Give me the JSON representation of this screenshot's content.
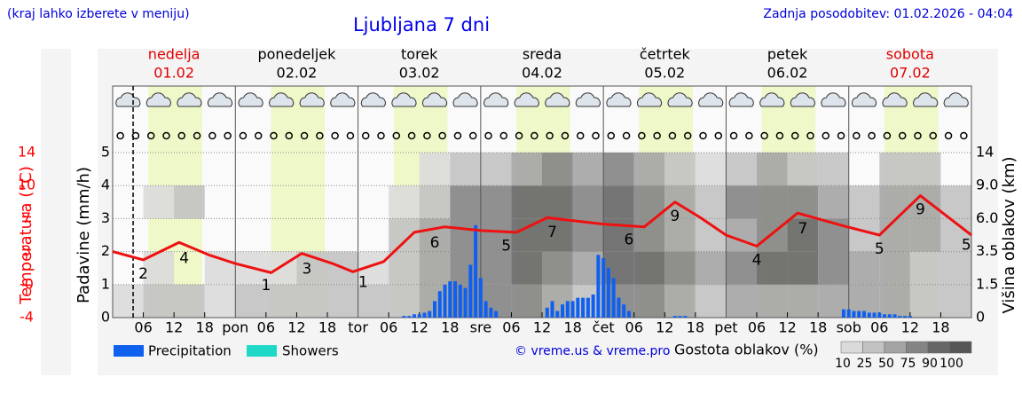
{
  "header": {
    "note": "(kraj lahko izberete v meniju)",
    "title": "Ljubljana 7 dni",
    "updated": "Zadnja posodobitev: 01.02.2026 - 04:04"
  },
  "chart_data": {
    "type": "meteogram",
    "days": [
      {
        "name": "nedelja",
        "date": "01.02",
        "color": "#e00000"
      },
      {
        "name": "ponedeljek",
        "date": "02.02",
        "color": "#000000"
      },
      {
        "name": "torek",
        "date": "03.02",
        "color": "#000000"
      },
      {
        "name": "sreda",
        "date": "04.02",
        "color": "#000000"
      },
      {
        "name": "četrtek",
        "date": "05.02",
        "color": "#000000"
      },
      {
        "name": "petek",
        "date": "06.02",
        "color": "#000000"
      },
      {
        "name": "sobota",
        "date": "07.02",
        "color": "#e00000"
      }
    ],
    "xlim": [
      0,
      168
    ],
    "xticks": [
      {
        "value": 6,
        "label": "06"
      },
      {
        "value": 12,
        "label": "12"
      },
      {
        "value": 18,
        "label": "18"
      },
      {
        "value": 24,
        "label": "pon"
      },
      {
        "value": 30,
        "label": "06"
      },
      {
        "value": 36,
        "label": "12"
      },
      {
        "value": 42,
        "label": "18"
      },
      {
        "value": 48,
        "label": "tor"
      },
      {
        "value": 54,
        "label": "06"
      },
      {
        "value": 60,
        "label": "12"
      },
      {
        "value": 66,
        "label": "18"
      },
      {
        "value": 72,
        "label": "sre"
      },
      {
        "value": 78,
        "label": "06"
      },
      {
        "value": 84,
        "label": "12"
      },
      {
        "value": 90,
        "label": "18"
      },
      {
        "value": 96,
        "label": "čet"
      },
      {
        "value": 102,
        "label": "06"
      },
      {
        "value": 108,
        "label": "12"
      },
      {
        "value": 114,
        "label": "18"
      },
      {
        "value": 120,
        "label": "pet"
      },
      {
        "value": 126,
        "label": "06"
      },
      {
        "value": 132,
        "label": "12"
      },
      {
        "value": 138,
        "label": "18"
      },
      {
        "value": 144,
        "label": "sob"
      },
      {
        "value": 150,
        "label": "06"
      },
      {
        "value": 156,
        "label": "12"
      },
      {
        "value": 162,
        "label": "18"
      }
    ],
    "daylight": [
      7,
      17.5
    ],
    "now": 4,
    "ylabel": "Padavine (mm/h)",
    "ylim": [
      0,
      5
    ],
    "yticks": [
      0,
      1,
      2,
      3,
      4,
      5
    ],
    "temp_label": "Temperatura (°C)",
    "temp_color": "#ff0000",
    "temp_ylim": [
      -4,
      14
    ],
    "temp_ticks": [
      {
        "value": -4,
        "label": "-4"
      },
      {
        "value": -0.4,
        "label": "-0"
      },
      {
        "value": 3.2,
        "label": "3"
      },
      {
        "value": 6.8,
        "label": "7"
      },
      {
        "value": 10.4,
        "label": "10"
      },
      14
    ],
    "y2label": "Višina oblakov (km)",
    "y2ticks": [
      0,
      1.5,
      3.5,
      {
        "value": 6,
        "label": "6.0"
      },
      {
        "value": 9,
        "label": "9.0"
      },
      14
    ],
    "temperature": {
      "color": "#ee1111",
      "x": [
        0,
        6,
        13,
        19,
        24,
        31,
        37,
        43,
        47,
        53,
        59,
        65,
        72,
        79,
        85,
        96,
        104,
        110,
        115,
        120,
        126,
        134,
        143,
        150,
        158,
        168
      ],
      "values": [
        3.2,
        2.3,
        4.2,
        2.8,
        1.9,
        0.9,
        3.0,
        1.9,
        1.0,
        2.1,
        5.3,
        5.9,
        5.5,
        5.3,
        6.9,
        6.2,
        5.9,
        8.6,
        6.9,
        5.0,
        3.8,
        7.4,
        6.0,
        5.0,
        9.3,
        5.0
      ]
    },
    "temp_labels": {
      "x": [
        6,
        14,
        30,
        38,
        49,
        63,
        77,
        86,
        101,
        110,
        126,
        135,
        150,
        158,
        167
      ],
      "values": [
        2,
        4,
        1,
        3,
        1,
        6,
        5,
        7,
        6,
        9,
        4,
        7,
        5,
        9,
        5
      ]
    },
    "series": [
      {
        "name": "Precipitation",
        "color": "#1060f0",
        "x": [
          57,
          58,
          59,
          60,
          61,
          62,
          63,
          64,
          65,
          66,
          67,
          68,
          69,
          70,
          71,
          72,
          73,
          74,
          75,
          85,
          86,
          87,
          88,
          89,
          90,
          91,
          92,
          93,
          94,
          95,
          96,
          97,
          98,
          99,
          100,
          101,
          110,
          111,
          112,
          143,
          144,
          145,
          146,
          147,
          148,
          149,
          150,
          151,
          152,
          153,
          154,
          155,
          156
        ],
        "values": [
          0.05,
          0.05,
          0.1,
          0.1,
          0.15,
          0.2,
          0.5,
          0.8,
          1.0,
          1.1,
          1.1,
          1.0,
          0.9,
          1.6,
          2.8,
          1.2,
          0.5,
          0.3,
          0.2,
          0.3,
          0.5,
          0.2,
          0.4,
          0.5,
          0.5,
          0.6,
          0.6,
          0.6,
          0.7,
          1.9,
          1.8,
          1.5,
          1.2,
          0.6,
          0.4,
          0.2,
          0.05,
          0.05,
          0.05,
          0.25,
          0.25,
          0.2,
          0.2,
          0.2,
          0.15,
          0.15,
          0.15,
          0.1,
          0.1,
          0.1,
          0.05,
          0.05,
          0.05
        ]
      }
    ],
    "showers": {
      "name": "Showers",
      "color": "#20d8c8"
    },
    "clouds": {
      "title": "Gostota oblakov (%)",
      "levels": [
        10,
        25,
        50,
        75,
        90,
        100
      ],
      "colors": [
        "#dadada",
        "#c2c2c2",
        "#a4a4a4",
        "#848484",
        "#666666",
        "#555555"
      ],
      "rows": [
        [
          10,
          25,
          25,
          10,
          25,
          25,
          25,
          25,
          25,
          25,
          50,
          75,
          75,
          75,
          50,
          25,
          75,
          75,
          50,
          25,
          50,
          50,
          50,
          50,
          50,
          50,
          25,
          25
        ],
        [
          0,
          10,
          0,
          10,
          10,
          10,
          25,
          25,
          10,
          25,
          50,
          75,
          75,
          90,
          75,
          50,
          90,
          90,
          75,
          50,
          75,
          90,
          90,
          75,
          50,
          50,
          25,
          25
        ],
        [
          0,
          0,
          0,
          0,
          0,
          0,
          0,
          0,
          0,
          25,
          50,
          75,
          75,
          90,
          90,
          75,
          90,
          75,
          50,
          25,
          50,
          75,
          90,
          75,
          25,
          50,
          50,
          25
        ],
        [
          0,
          10,
          25,
          0,
          0,
          0,
          0,
          0,
          0,
          10,
          25,
          75,
          75,
          90,
          90,
          75,
          90,
          75,
          50,
          25,
          75,
          75,
          75,
          50,
          25,
          50,
          50,
          25
        ],
        [
          0,
          0,
          0,
          0,
          0,
          0,
          0,
          0,
          0,
          0,
          10,
          25,
          25,
          50,
          75,
          50,
          75,
          50,
          25,
          10,
          25,
          50,
          25,
          25,
          0,
          25,
          25,
          0
        ]
      ]
    },
    "credit": "© vreme.us & vreme.pro"
  }
}
